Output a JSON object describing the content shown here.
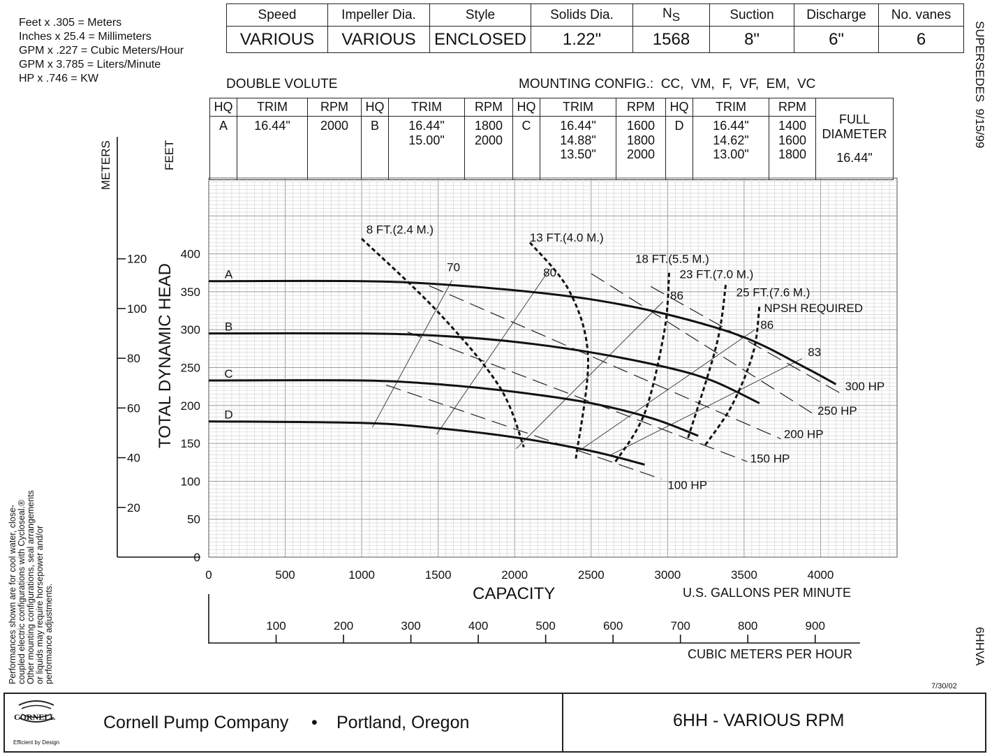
{
  "conversions": [
    "Feet x .305 = Meters",
    "Inches x 25.4 = Millimeters",
    "GPM x .227 = Cubic Meters/Hour",
    "GPM x 3.785 = Liters/Minute",
    "HP x .746 = KW"
  ],
  "spec_table": {
    "headers": [
      "Speed",
      "Impeller Dia.",
      "Style",
      "Solids Dia.",
      "N",
      "Suction",
      "Discharge",
      "No. vanes"
    ],
    "ns_subscript": "S",
    "values": [
      "VARIOUS",
      "VARIOUS",
      "ENCLOSED",
      "1.22\"",
      "1568",
      "8\"",
      "6\"",
      "6"
    ]
  },
  "volute": "DOUBLE VOLUTE",
  "mounting": "MOUNTING CONFIG.:  CC,  VM,  F,  VF,  EM,  VC",
  "hq_table": {
    "headers": [
      "HQ",
      "TRIM",
      "RPM",
      "HQ",
      "TRIM",
      "RPM",
      "HQ",
      "TRIM",
      "RPM",
      "HQ",
      "TRIM",
      "RPM"
    ],
    "groups": [
      {
        "hq": "A",
        "trims": [
          "16.44\""
        ],
        "rpms": [
          "2000"
        ]
      },
      {
        "hq": "B",
        "trims": [
          "16.44\"",
          "15.00\""
        ],
        "rpms": [
          "1800",
          "2000"
        ]
      },
      {
        "hq": "C",
        "trims": [
          "16.44\"",
          "14.88\"",
          "13.50\""
        ],
        "rpms": [
          "1600",
          "1800",
          "2000"
        ]
      },
      {
        "hq": "D",
        "trims": [
          "16.44\"",
          "14.62\"",
          "13.00\""
        ],
        "rpms": [
          "1400",
          "1600",
          "1800"
        ]
      }
    ],
    "full_diameter_label": [
      "FULL",
      "DIAMETER"
    ],
    "full_diameter_value": "16.44\""
  },
  "side_text": {
    "supersedes": "SUPERSEDES  9/15/99",
    "model_code": "6HHVA",
    "disclaimer": [
      "Performances shown are for cool water, close-",
      "coupled electric configurations with Cycloseal.®",
      "Other mounting configurations, seal arrangements",
      "or liquids may require horsepower and/or",
      "performance adjustments."
    ],
    "date": "7/30/02"
  },
  "footer": {
    "logo_text": "CORNELL",
    "logo_tagline": "Efficient by Design",
    "company": "Cornell Pump Company",
    "bullet": "•",
    "location": "Portland, Oregon",
    "title": "6HH - VARIOUS RPM"
  },
  "chart_data": {
    "type": "line",
    "xlabel": "CAPACITY",
    "xunit": "U.S. GALLONS PER MINUTE",
    "ylabel": "TOTAL DYNAMIC HEAD",
    "ylabel_left": "METERS",
    "ylabel_right": "FEET",
    "xlim": [
      0,
      4500
    ],
    "ylim": [
      0,
      500
    ],
    "x_ticks": [
      "0",
      "500",
      "1000",
      "1500",
      "2000",
      "2500",
      "3000",
      "3500",
      "4000"
    ],
    "y_ticks": [
      "0",
      "50",
      "100",
      "150",
      "200",
      "250",
      "300",
      "350",
      "400"
    ],
    "meter_ticks": [
      "20",
      "40",
      "60",
      "80",
      "100",
      "120"
    ],
    "cmh_ticks": [
      "100",
      "200",
      "300",
      "400",
      "500",
      "600",
      "700",
      "800",
      "900"
    ],
    "cmh_label": "CUBIC METERS PER HOUR",
    "head_curves": [
      {
        "name": "A",
        "points": [
          [
            0,
            364
          ],
          [
            1000,
            364
          ],
          [
            1500,
            360
          ],
          [
            2000,
            352
          ],
          [
            2500,
            340
          ],
          [
            3000,
            320
          ],
          [
            3500,
            290
          ],
          [
            3900,
            250
          ],
          [
            4100,
            228
          ]
        ]
      },
      {
        "name": "B",
        "points": [
          [
            0,
            295
          ],
          [
            1000,
            295
          ],
          [
            1500,
            292
          ],
          [
            2000,
            284
          ],
          [
            2500,
            270
          ],
          [
            3000,
            250
          ],
          [
            3300,
            232
          ],
          [
            3600,
            203
          ]
        ]
      },
      {
        "name": "C",
        "points": [
          [
            0,
            233
          ],
          [
            1000,
            233
          ],
          [
            1500,
            228
          ],
          [
            2000,
            218
          ],
          [
            2500,
            203
          ],
          [
            2900,
            183
          ],
          [
            3200,
            160
          ]
        ]
      },
      {
        "name": "D",
        "points": [
          [
            0,
            179
          ],
          [
            1000,
            177
          ],
          [
            1500,
            170
          ],
          [
            2000,
            158
          ],
          [
            2500,
            140
          ],
          [
            2850,
            122
          ]
        ]
      }
    ],
    "efficiency_lines": [
      {
        "name": "70",
        "points": [
          [
            1070,
            171
          ],
          [
            1590,
            365
          ]
        ],
        "label_at": [
          1600,
          377
        ]
      },
      {
        "name": "80",
        "points": [
          [
            1490,
            162
          ],
          [
            2230,
            380
          ]
        ],
        "label_at": [
          2230,
          370
        ]
      },
      {
        "name": "86",
        "points": [
          [
            2010,
            143
          ],
          [
            2970,
            337
          ]
        ],
        "label_at": [
          3060,
          340
        ]
      },
      {
        "name": "86",
        "points": [
          [
            2420,
            140
          ],
          [
            3570,
            300
          ]
        ],
        "label_at": [
          3650,
          301
        ]
      },
      {
        "name": "83",
        "points": [
          [
            2620,
            134
          ],
          [
            3880,
            262
          ]
        ],
        "label_at": [
          3960,
          265
        ]
      }
    ],
    "npsh_curves": [
      {
        "name": "8 FT.(2.4 M.)",
        "points": [
          [
            1000,
            420
          ],
          [
            1500,
            323
          ],
          [
            1900,
            225
          ],
          [
            2060,
            145
          ]
        ],
        "label_at": [
          1250,
          427
        ]
      },
      {
        "name": "13 FT.(4.0 M.)",
        "points": [
          [
            2100,
            415
          ],
          [
            2360,
            350
          ],
          [
            2480,
            262
          ],
          [
            2400,
            130
          ]
        ],
        "label_at": [
          2340,
          416
        ]
      },
      {
        "name": "18 FT.(5.5 M.)",
        "points": [
          [
            3010,
            375
          ],
          [
            2980,
            300
          ],
          [
            2850,
            190
          ],
          [
            2650,
            123
          ]
        ],
        "label_at": [
          3030,
          388
        ]
      },
      {
        "name": "23 FT.(7.0 M.)",
        "points": [
          [
            3380,
            359
          ],
          [
            3320,
            280
          ],
          [
            3130,
            155
          ]
        ],
        "label_at": [
          3320,
          368
        ]
      },
      {
        "name": "25 FT.(7.6 M.)",
        "points": [
          [
            3600,
            330
          ],
          [
            3560,
            270
          ],
          [
            3420,
            200
          ],
          [
            3240,
            146
          ]
        ],
        "label_at": [
          3690,
          344
        ]
      }
    ],
    "npsh_label": "NPSH REQUIRED",
    "hp_lines": [
      {
        "name": "300 HP",
        "points": [
          [
            2890,
            357
          ],
          [
            4140,
            215
          ]
        ],
        "label_at": [
          4160,
          220
        ]
      },
      {
        "name": "250 HP",
        "points": [
          [
            2500,
            374
          ],
          [
            3960,
            188
          ]
        ],
        "label_at": [
          3980,
          188
        ]
      },
      {
        "name": "200 HP",
        "points": [
          [
            1440,
            358
          ],
          [
            3740,
            156
          ]
        ],
        "label_at": [
          3760,
          157
        ]
      },
      {
        "name": "150 HP",
        "points": [
          [
            1300,
            297
          ],
          [
            3520,
            126
          ]
        ],
        "label_at": [
          3540,
          125
        ]
      },
      {
        "name": "100 HP",
        "points": [
          [
            1160,
            227
          ],
          [
            2960,
            103
          ]
        ],
        "label_at": [
          3000,
          90
        ]
      }
    ],
    "curve_labels": [
      "A",
      "B",
      "C",
      "D"
    ],
    "grid": true
  }
}
